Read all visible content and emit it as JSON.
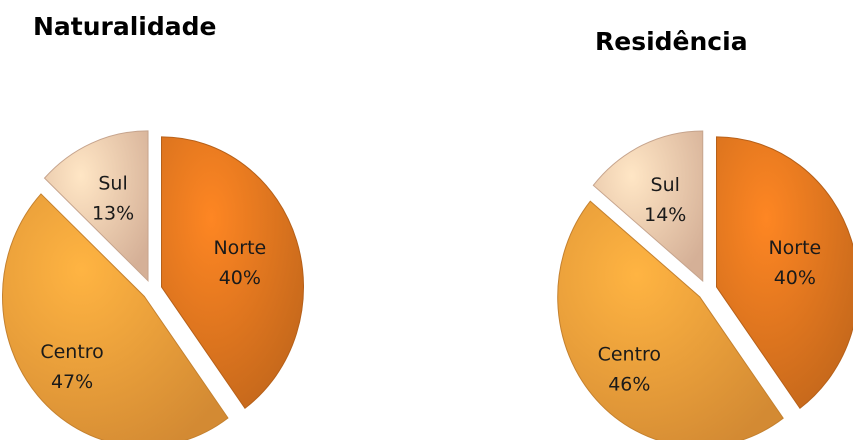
{
  "chart_data": [
    {
      "type": "pie",
      "title": "Naturalidade",
      "slices": [
        {
          "label": "Norte",
          "value": 40,
          "value_label": "40%",
          "color": "#e3781f"
        },
        {
          "label": "Centro",
          "value": 47,
          "value_label": "47%",
          "color": "#f5a13b"
        },
        {
          "label": "Sul",
          "value": 13,
          "value_label": "13%",
          "color": "#f8cdb0"
        }
      ]
    },
    {
      "type": "pie",
      "title": "Residência",
      "slices": [
        {
          "label": "Norte",
          "value": 40,
          "value_label": "40%",
          "color": "#e3781f"
        },
        {
          "label": "Centro",
          "value": 46,
          "value_label": "46%",
          "color": "#f5a13b"
        },
        {
          "label": "Sul",
          "value": 14,
          "value_label": "14%",
          "color": "#f8cdb0"
        }
      ]
    }
  ]
}
